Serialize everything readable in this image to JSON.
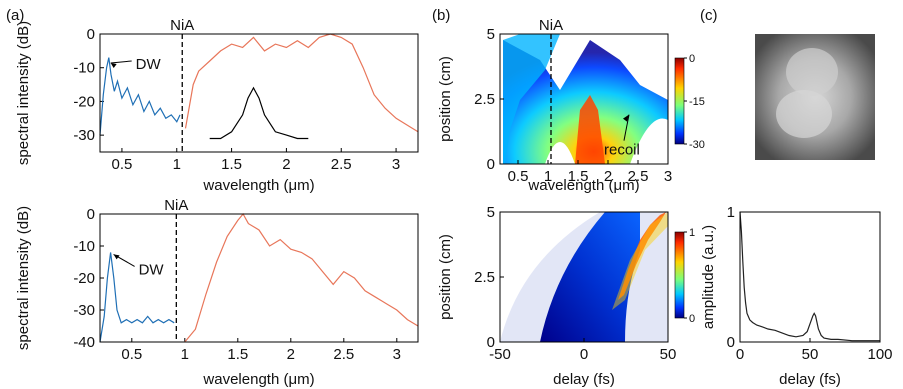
{
  "panel_labels": [
    "(a)",
    "(b)",
    "(c)"
  ],
  "chart_data": [
    {
      "id": "a-top",
      "type": "line",
      "panel": "(a)",
      "xlabel": "wavelength (μm)",
      "ylabel": "spectral intensity (dB)",
      "xlim": [
        0.3,
        3.2
      ],
      "ylim": [
        -35,
        0
      ],
      "xticks": [
        "0.5",
        "1",
        "1.5",
        "2",
        "2.5",
        "3"
      ],
      "xtick_values": [
        0.5,
        1,
        1.5,
        2,
        2.5,
        3
      ],
      "yticks": [
        "0",
        "-10",
        "-20",
        "-30"
      ],
      "ytick_values": [
        0,
        -10,
        -20,
        -30
      ],
      "colors": {
        "dw": "#1f6fb5",
        "main": "#e8765a",
        "inset": "#000000",
        "marker": "#000000"
      },
      "marker": {
        "label": "NiA",
        "x": 1.05
      },
      "annotations": [
        {
          "text": "DW",
          "x": 0.37,
          "y": -8
        }
      ],
      "series": [
        {
          "x": [
            0.3,
            0.33,
            0.36,
            0.38,
            0.4,
            0.43,
            0.46,
            0.5,
            0.55,
            0.6,
            0.65,
            0.7,
            0.75,
            0.8,
            0.85,
            0.9,
            0.95,
            1.0,
            1.03
          ],
          "y": [
            -30,
            -18,
            -10,
            -7,
            -12,
            -17,
            -14,
            -19,
            -16,
            -21,
            -18,
            -23,
            -20,
            -24,
            -22,
            -25,
            -24,
            -26,
            -24
          ]
        },
        {
          "x": [
            1.08,
            1.15,
            1.2,
            1.3,
            1.4,
            1.5,
            1.6,
            1.7,
            1.8,
            1.9,
            2.0,
            2.1,
            2.2,
            2.3,
            2.4,
            2.5,
            2.6,
            2.7,
            2.8,
            2.9,
            3.0,
            3.1,
            3.2
          ],
          "y": [
            -28,
            -15,
            -11,
            -8,
            -5,
            -3,
            -4,
            -1,
            -5,
            -3,
            -4,
            -2,
            -4,
            -1,
            0,
            -1,
            -3,
            -10,
            -18,
            -22,
            -25,
            -27,
            -29
          ]
        },
        {
          "x": [
            1.3,
            1.4,
            1.5,
            1.6,
            1.65,
            1.7,
            1.75,
            1.8,
            1.9,
            2.0,
            2.1,
            2.2
          ],
          "y": [
            -31,
            -31,
            -29,
            -24,
            -19,
            -16,
            -19,
            -24,
            -29,
            -30,
            -31,
            -31
          ]
        }
      ]
    },
    {
      "id": "a-bottom",
      "type": "line",
      "panel": "(a)",
      "xlabel": "wavelength (μm)",
      "ylabel": "spectral intensity (dB)",
      "xlim": [
        0.2,
        3.2
      ],
      "ylim": [
        -40,
        0
      ],
      "xticks": [
        "0.5",
        "1",
        "1.5",
        "2",
        "2.5",
        "3"
      ],
      "xtick_values": [
        0.5,
        1,
        1.5,
        2,
        2.5,
        3
      ],
      "yticks": [
        "0",
        "-10",
        "-20",
        "-30",
        "-40"
      ],
      "ytick_values": [
        0,
        -10,
        -20,
        -30,
        -40
      ],
      "colors": {
        "dw": "#1f6fb5",
        "main": "#e8765a",
        "marker": "#000000"
      },
      "marker": {
        "label": "NiA",
        "x": 0.92
      },
      "annotations": [
        {
          "text": "DW",
          "x": 0.3,
          "y": -12
        }
      ],
      "series": [
        {
          "x": [
            0.2,
            0.24,
            0.27,
            0.3,
            0.33,
            0.36,
            0.4,
            0.45,
            0.5,
            0.55,
            0.6,
            0.65,
            0.7,
            0.75,
            0.8,
            0.85,
            0.9
          ],
          "y": [
            -40,
            -32,
            -20,
            -12,
            -20,
            -30,
            -34,
            -33,
            -34,
            -33,
            -34,
            -32,
            -34,
            -33,
            -34,
            -33,
            -34
          ]
        },
        {
          "x": [
            1.0,
            1.1,
            1.2,
            1.3,
            1.4,
            1.5,
            1.55,
            1.6,
            1.7,
            1.8,
            1.9,
            2.0,
            2.1,
            2.2,
            2.3,
            2.4,
            2.5,
            2.6,
            2.7,
            2.8,
            2.9,
            3.0,
            3.1,
            3.2
          ],
          "y": [
            -40,
            -36,
            -25,
            -15,
            -7,
            -2,
            0,
            -3,
            -5,
            -10,
            -8,
            -11,
            -12,
            -14,
            -18,
            -22,
            -18,
            -20,
            -24,
            -26,
            -28,
            -30,
            -33,
            -35
          ]
        }
      ]
    },
    {
      "id": "b-top",
      "type": "heatmap",
      "panel": "(b)",
      "xlabel": "wavelength (μm)",
      "ylabel": "position (cm)",
      "xlim": [
        0.2,
        3.0
      ],
      "ylim": [
        0,
        5
      ],
      "xticks": [
        "0.5",
        "1",
        "1.5",
        "2",
        "2.5",
        "3"
      ],
      "xtick_values": [
        0.5,
        1,
        1.5,
        2,
        2.5,
        3
      ],
      "yticks": [
        "0",
        "2.5",
        "5"
      ],
      "ytick_values": [
        0,
        2.5,
        5
      ],
      "colorbar": {
        "ticks": [
          "0",
          "-15",
          "-30"
        ],
        "values": [
          0,
          -15,
          -30
        ]
      },
      "marker": {
        "label": "NiA",
        "x": 1.05
      },
      "annotations": [
        {
          "text": "recoil",
          "x": 2.35,
          "y": 1.9
        }
      ]
    },
    {
      "id": "b-bottom",
      "type": "heatmap",
      "panel": "(b)",
      "xlabel": "delay (fs)",
      "ylabel": "position (cm)",
      "xlim": [
        -50,
        50
      ],
      "ylim": [
        0,
        5
      ],
      "xticks": [
        "-50",
        "0",
        "50"
      ],
      "xtick_values": [
        -50,
        0,
        50
      ],
      "yticks": [
        "0",
        "2.5",
        "5"
      ],
      "ytick_values": [
        0,
        2.5,
        5
      ],
      "colorbar": {
        "ticks": [
          "1",
          "0"
        ],
        "values": [
          1,
          0
        ]
      }
    },
    {
      "id": "c-bottom",
      "type": "line",
      "panel": "(c)",
      "xlabel": "delay (fs)",
      "ylabel": "amplitude (a.u.)",
      "xlim": [
        0,
        100
      ],
      "ylim": [
        0,
        1
      ],
      "xticks": [
        "0",
        "50",
        "100"
      ],
      "xtick_values": [
        0,
        50,
        100
      ],
      "yticks": [
        "0",
        "1"
      ],
      "ytick_values": [
        0,
        1
      ],
      "colors": {
        "line": "#222222"
      },
      "series": [
        {
          "x": [
            0,
            1,
            2,
            3,
            4,
            5,
            7,
            9,
            12,
            15,
            20,
            25,
            30,
            35,
            40,
            45,
            48,
            50,
            52,
            53,
            54,
            55,
            56,
            58,
            60,
            65,
            70,
            80,
            90,
            100
          ],
          "y": [
            1.0,
            0.85,
            0.62,
            0.42,
            0.3,
            0.22,
            0.17,
            0.15,
            0.13,
            0.12,
            0.1,
            0.09,
            0.07,
            0.05,
            0.04,
            0.05,
            0.08,
            0.14,
            0.2,
            0.22,
            0.2,
            0.15,
            0.1,
            0.05,
            0.03,
            0.02,
            0.02,
            0.01,
            0.01,
            0.01
          ]
        }
      ]
    }
  ]
}
